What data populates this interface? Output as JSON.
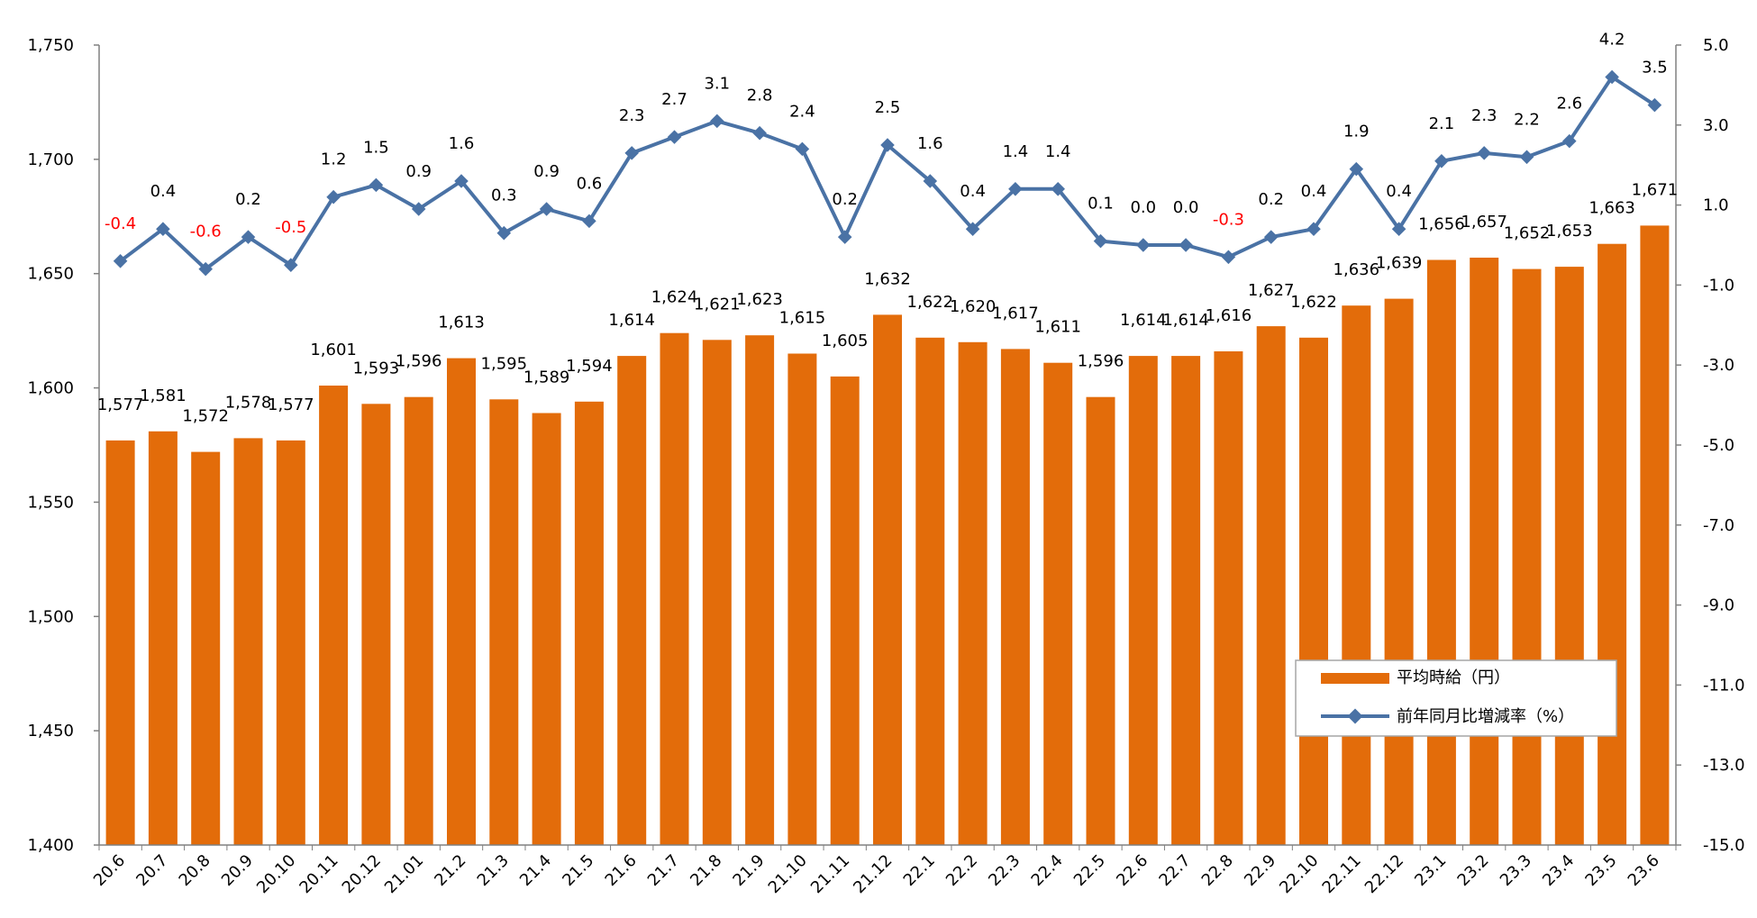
{
  "chart_data": {
    "type": "bar",
    "categories": [
      "20.6",
      "20.7",
      "20.8",
      "20.9",
      "20.10",
      "20.11",
      "20.12",
      "21.01",
      "21.2",
      "21.3",
      "21.4",
      "21.5",
      "21.6",
      "21.7",
      "21.8",
      "21.9",
      "21.10",
      "21.11",
      "21.12",
      "22.1",
      "22.2",
      "22.3",
      "22.4",
      "22.5",
      "22.6",
      "22.7",
      "22.8",
      "22.9",
      "22.10",
      "22.11",
      "22.12",
      "23.1",
      "23.2",
      "23.3",
      "23.4",
      "23.5",
      "23.6"
    ],
    "series": [
      {
        "name": "平均時給（円）",
        "type": "bar",
        "axis": "left",
        "values": [
          1577,
          1581,
          1572,
          1578,
          1577,
          1601,
          1593,
          1596,
          1613,
          1595,
          1589,
          1594,
          1614,
          1624,
          1621,
          1623,
          1615,
          1605,
          1632,
          1622,
          1620,
          1617,
          1611,
          1596,
          1614,
          1614,
          1616,
          1627,
          1622,
          1636,
          1639,
          1656,
          1657,
          1652,
          1653,
          1663,
          1671
        ],
        "labels": [
          "1,577",
          "1,581",
          "1,572",
          "1,578",
          "1,577",
          "1,601",
          "1,593",
          "1,596",
          "1,613",
          "1,595",
          "1,589",
          "1,594",
          "1,614",
          "1,624",
          "1,621",
          "1,623",
          "1,615",
          "1,605",
          "1,632",
          "1,622",
          "1,620",
          "1,617",
          "1,611",
          "1,596",
          "1,614",
          "1,614",
          "1,616",
          "1,627",
          "1,622",
          "1,636",
          "1,639",
          "1,656",
          "1,657",
          "1,652",
          "1,653",
          "1,663",
          "1,671"
        ]
      },
      {
        "name": "前年同月比増減率（%）",
        "type": "line",
        "axis": "right",
        "values": [
          -0.4,
          0.4,
          -0.6,
          0.2,
          -0.5,
          1.2,
          1.5,
          0.9,
          1.6,
          0.3,
          0.9,
          0.6,
          2.3,
          2.7,
          3.1,
          2.8,
          2.4,
          0.2,
          2.5,
          1.6,
          0.4,
          1.4,
          1.4,
          0.1,
          0.0,
          0.0,
          -0.3,
          0.2,
          0.4,
          1.9,
          0.4,
          2.1,
          2.3,
          2.2,
          2.6,
          4.2,
          3.5
        ],
        "labels": [
          "-0.4",
          "0.4",
          "-0.6",
          "0.2",
          "-0.5",
          "1.2",
          "1.5",
          "0.9",
          "1.6",
          "0.3",
          "0.9",
          "0.6",
          "2.3",
          "2.7",
          "3.1",
          "2.8",
          "2.4",
          "0.2",
          "2.5",
          "1.6",
          "0.4",
          "1.4",
          "1.4",
          "0.1",
          "0.0",
          "0.0",
          "-0.3",
          "0.2",
          "0.4",
          "1.9",
          "0.4",
          "2.1",
          "2.3",
          "2.2",
          "2.6",
          "4.2",
          "3.5"
        ]
      }
    ],
    "left_axis": {
      "ylim": [
        1400,
        1750
      ],
      "ticks": [
        1400,
        1450,
        1500,
        1550,
        1600,
        1650,
        1700,
        1750
      ],
      "tick_labels": [
        "1,400",
        "1,450",
        "1,500",
        "1,550",
        "1,600",
        "1,650",
        "1,700",
        "1,750"
      ]
    },
    "right_axis": {
      "ylim": [
        -15.0,
        5.0
      ],
      "ticks": [
        -15,
        -13,
        -11,
        -9,
        -7,
        -5,
        -3,
        -1,
        1,
        3,
        5
      ],
      "tick_labels": [
        "-15.0",
        "-13.0",
        "-11.0",
        "-9.0",
        "-7.0",
        "-5.0",
        "-3.0",
        "-1.0",
        "1.0",
        "3.0",
        "5.0"
      ]
    },
    "legend_position": "bottom-right",
    "grid": false,
    "title": "",
    "xlabel": "",
    "ylabel": ""
  },
  "colors": {
    "bar": "#E36C0A",
    "line": "#4A72A5",
    "negative_label": "#FF0000",
    "label": "#000000",
    "axis": "#808080"
  }
}
